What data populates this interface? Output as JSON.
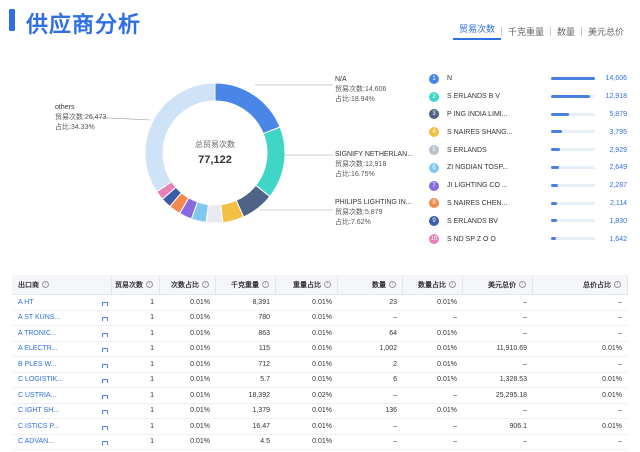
{
  "header": {
    "title": "供应商分析",
    "tabs": [
      "贸易次数",
      "千克重量",
      "数量",
      "美元总价"
    ],
    "active_tab": 0
  },
  "chart_data": {
    "type": "pie",
    "center_label": "总贸易次数",
    "center_value": "77,122",
    "slices": [
      {
        "name": "N/A",
        "value": 14606,
        "pct": 18.94,
        "color": "#4a85e8"
      },
      {
        "name": "SIGNIFY NETHERLAN...",
        "value": 12918,
        "pct": 16.75,
        "color": "#3fd6c8"
      },
      {
        "name": "PHILIPS LIGHTING IN...",
        "value": 5879,
        "pct": 7.62,
        "color": "#4d6487"
      },
      {
        "name": "",
        "value": 3795,
        "pct": 4.92,
        "color": "#f2c144"
      },
      {
        "name": "",
        "value": 2929,
        "pct": 3.8,
        "color": "#e8eaf0"
      },
      {
        "name": "",
        "value": 2649,
        "pct": 3.43,
        "color": "#80c8f2"
      },
      {
        "name": "",
        "value": 2287,
        "pct": 2.97,
        "color": "#8a6ae0"
      },
      {
        "name": "",
        "value": 2114,
        "pct": 2.74,
        "color": "#f58a4c"
      },
      {
        "name": "",
        "value": 1830,
        "pct": 2.37,
        "color": "#3b5ea8"
      },
      {
        "name": "",
        "value": 1642,
        "pct": 2.13,
        "color": "#e880b8"
      },
      {
        "name": "others",
        "value": 26473,
        "pct": 34.33,
        "color": "#cfe3f8"
      }
    ],
    "annotations": [
      {
        "name": "N/A",
        "line1": "贸易次数:14,606",
        "line2": "占比:18.94%"
      },
      {
        "name": "SIGNIFY NETHERLAN...",
        "line1": "贸易次数:12,918",
        "line2": "占比:16.75%"
      },
      {
        "name": "PHILIPS LIGHTING IN...",
        "line1": "贸易次数:5,879",
        "line2": "占比:7.62%"
      },
      {
        "name": "others",
        "line1": "贸易次数:26,473",
        "line2": "占比:34.33%"
      }
    ]
  },
  "ranking": [
    {
      "num": "1",
      "name": "N",
      "value": "14,606",
      "fraction": 1.0,
      "color": "#4a85e8"
    },
    {
      "num": "2",
      "name": "S          ERLANDS B V",
      "value": "12,918",
      "fraction": 0.884,
      "color": "#3fd6c8"
    },
    {
      "num": "3",
      "name": "P          ING INDIA LIMI...",
      "value": "5,879",
      "fraction": 0.403,
      "color": "#4d6487"
    },
    {
      "num": "4",
      "name": "S          NAIRES SHANG...",
      "value": "3,795",
      "fraction": 0.26,
      "color": "#f2c144"
    },
    {
      "num": "5",
      "name": "S          ERLANDS",
      "value": "2,929",
      "fraction": 0.2,
      "color": "#b8c0cc"
    },
    {
      "num": "6",
      "name": "ZI          NGDIAN TOSP...",
      "value": "2,649",
      "fraction": 0.181,
      "color": "#80c8f2"
    },
    {
      "num": "7",
      "name": "JI          LIGHTING CO ...",
      "value": "2,287",
      "fraction": 0.157,
      "color": "#8a6ae0"
    },
    {
      "num": "8",
      "name": "S          NAIRES CHEN...",
      "value": "2,114",
      "fraction": 0.145,
      "color": "#f58a4c"
    },
    {
      "num": "9",
      "name": "S          ERLANDS BV",
      "value": "1,830",
      "fraction": 0.125,
      "color": "#3b5ea8"
    },
    {
      "num": "10",
      "name": "S          ND SP Z O O",
      "value": "1,642",
      "fraction": 0.112,
      "color": "#e880b8"
    }
  ],
  "table": {
    "headers": [
      "出口商",
      "贸易次数",
      "次数占比",
      "千克重量",
      "重量占比",
      "数量",
      "数量占比",
      "美元总价",
      "总价占比"
    ],
    "rows": [
      [
        "A       HT",
        "1",
        "0.01%",
        "8,391",
        "0.01%",
        "23",
        "0.01%",
        "–",
        "–"
      ],
      [
        "A       ST KUNS...",
        "1",
        "0.01%",
        "780",
        "0.01%",
        "–",
        "–",
        "–",
        "–"
      ],
      [
        "A       TRONIC...",
        "1",
        "0.01%",
        "863",
        "0.01%",
        "64",
        "0.01%",
        "–",
        "–"
      ],
      [
        "A       ELECTR...",
        "1",
        "0.01%",
        "115",
        "0.01%",
        "1,002",
        "0.01%",
        "11,910.69",
        "0.01%"
      ],
      [
        "B       PLES W...",
        "1",
        "0.01%",
        "712",
        "0.01%",
        "2",
        "0.01%",
        "–",
        "–"
      ],
      [
        "C       LOGISTIK...",
        "1",
        "0.01%",
        "5.7",
        "0.01%",
        "6",
        "0.01%",
        "1,328.53",
        "0.01%"
      ],
      [
        "C       USTRIA...",
        "1",
        "0.01%",
        "18,392",
        "0.02%",
        "–",
        "–",
        "25,295.18",
        "0.01%"
      ],
      [
        "C       IGHT SH...",
        "1",
        "0.01%",
        "1,379",
        "0.01%",
        "136",
        "0.01%",
        "–",
        "–"
      ],
      [
        "C       ISTICS P...",
        "1",
        "0.01%",
        "16.47",
        "0.01%",
        "–",
        "–",
        "906.1",
        "0.01%"
      ],
      [
        "C       ADVAN...",
        "1",
        "0.01%",
        "4.5",
        "0.01%",
        "–",
        "–",
        "–",
        "–"
      ]
    ]
  }
}
